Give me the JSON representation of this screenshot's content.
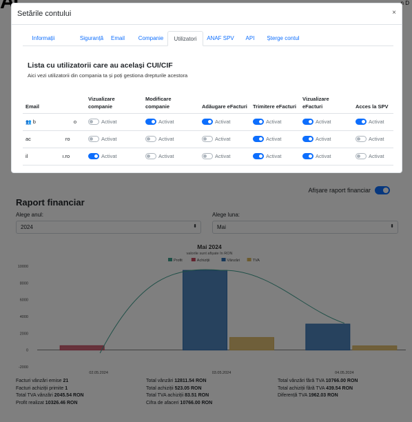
{
  "background": {
    "logo": "AC",
    "topright": "n  D",
    "toggle_label": "Afișare raport financiar",
    "title": "Raport financiar",
    "year_label": "Alege anul:",
    "year_value": "2024",
    "month_label": "Alege luna:",
    "month_value": "Mai",
    "stats": [
      [
        {
          "label": "Facturi vânzări emise",
          "value": "21"
        },
        {
          "label": "Facturi achiziții primite",
          "value": "1"
        },
        {
          "label": "Total TVA vânzări",
          "value": "2045.54 RON"
        },
        {
          "label": "Profit realizat",
          "value": "10326.46 RON"
        }
      ],
      [
        {
          "label": "Total vânzări",
          "value": "12811.54 RON"
        },
        {
          "label": "Total achiziții",
          "value": "523.05 RON"
        },
        {
          "label": "Total TVA achiziții",
          "value": "83.51 RON"
        },
        {
          "label": "Cifra de afaceri",
          "value": "10766.00 RON"
        }
      ],
      [
        {
          "label": "Total vânzări fără TVA",
          "value": "10766.00 RON"
        },
        {
          "label": "Total achiziții fără TVA",
          "value": "439.54 RON"
        },
        {
          "label": "Diferență TVA",
          "value": "1962.03 RON"
        }
      ]
    ]
  },
  "chart_data": {
    "type": "bar",
    "title": "Mai 2024",
    "subtitle": "valorile sunt afișate în RON",
    "categories": [
      "02.05.2024",
      "03.05.2024",
      "04.05.2024"
    ],
    "series": [
      {
        "name": "Profit",
        "type": "line",
        "color": "#3f9f8f",
        "values": [
          -200,
          9500,
          3200
        ]
      },
      {
        "name": "Achiziții",
        "color": "#c5495f",
        "values": [
          523,
          0,
          0
        ]
      },
      {
        "name": "Vânzări",
        "color": "#2f6eb0",
        "values": [
          0,
          9500,
          3100
        ]
      },
      {
        "name": "TVA",
        "color": "#d9b45c",
        "values": [
          0,
          1500,
          500
        ]
      }
    ],
    "ylim": [
      -2000,
      10000
    ],
    "yticks": [
      "10000",
      "8000",
      "6000",
      "4000",
      "2000",
      "0",
      "-2000"
    ]
  },
  "modal": {
    "title": "Setările contului",
    "close": "×",
    "tabs": [
      "Informații",
      "Siguranță",
      "Email",
      "Companie",
      "Utilizatori",
      "ANAF SPV",
      "API",
      "Șterge contul"
    ],
    "active_tab": "Utilizatori",
    "list_title": "Lista cu utilizatorii care au același CUI/CIF",
    "list_subtitle": "Aici vezi utilizatorii din compania ta și poți gestiona drepturile acestora",
    "columns": [
      "Email",
      "Vizualizare companie",
      "Modificare companie",
      "Adăugare eFacturi",
      "Trimitere eFacturi",
      "Vizualizare eFacturi",
      "Acces la SPV"
    ],
    "status_label": "Activat",
    "users": [
      {
        "email_start": "b",
        "email_end": "o",
        "owner": true,
        "perms": [
          false,
          true,
          true,
          true,
          true,
          true
        ]
      },
      {
        "email_start": "ac",
        "email_end": "ro",
        "owner": false,
        "perms": [
          false,
          false,
          false,
          true,
          true,
          false
        ]
      },
      {
        "email_start": "il",
        "email_end": "ı.ro",
        "owner": false,
        "perms": [
          true,
          false,
          false,
          true,
          true,
          false
        ]
      }
    ]
  }
}
